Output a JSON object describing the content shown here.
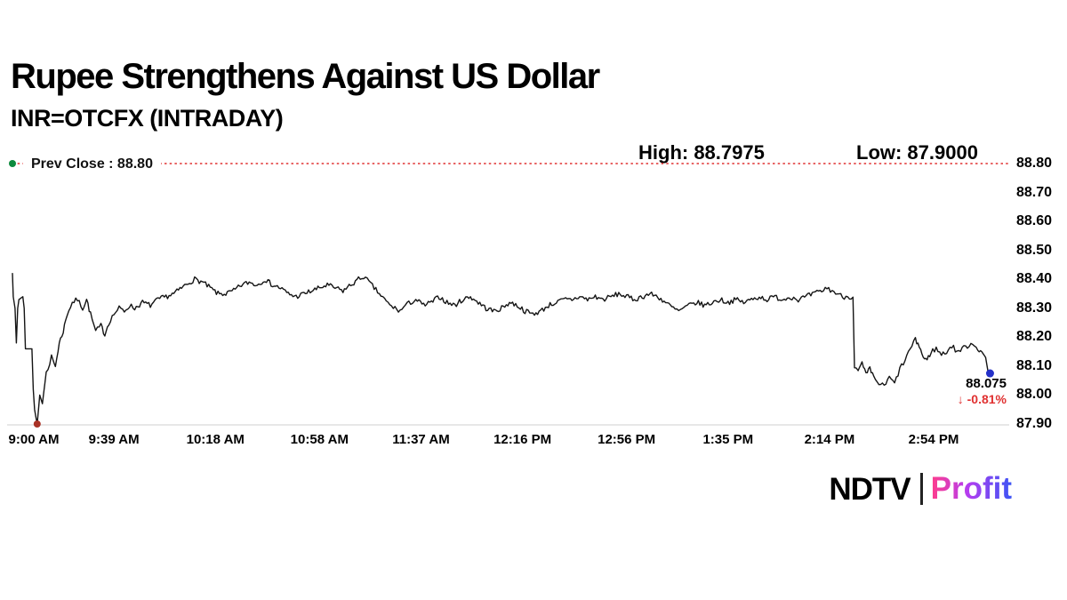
{
  "header": {
    "title": "Rupee Strengthens Against US Dollar",
    "subtitle": "INR=OTCFX (INTRADAY)"
  },
  "chart": {
    "prev_close_label": "Prev Close : 88.80",
    "high_label": "High: 88.7975",
    "low_label": "Low: 87.9000",
    "last_price": "88.075",
    "change_label": "↓ -0.81%"
  },
  "colors": {
    "line": "#141414",
    "prev_close_red": "#e03131",
    "change_red": "#e03131",
    "start_dot_green": "#0e8a3e",
    "low_dot_red": "#a93226",
    "end_dot_blue": "#2430c8",
    "axis_gray": "#cfcfcf"
  },
  "chart_data": {
    "type": "line",
    "title": "Rupee Strengthens Against US Dollar",
    "instrument": "INR=OTCFX (INTRADAY)",
    "prev_close": 88.8,
    "high": 88.7975,
    "low": 87.9,
    "last": 88.075,
    "change_pct": -0.81,
    "ylim": [
      87.9,
      88.8
    ],
    "y_ticks": [
      88.8,
      88.7,
      88.6,
      88.5,
      88.4,
      88.3,
      88.2,
      88.1,
      88.0,
      87.9
    ],
    "x_ticks": [
      "9:00 AM",
      "9:39 AM",
      "10:18 AM",
      "10:58 AM",
      "11:37 AM",
      "12:16 PM",
      "12:56 PM",
      "1:35 PM",
      "2:14 PM",
      "2:54 PM"
    ],
    "x_tick_minutes": [
      0,
      39,
      78,
      118,
      157,
      196,
      236,
      275,
      314,
      354
    ],
    "low_point_minute": 9.5,
    "anchors": [
      [
        0,
        88.8
      ],
      [
        0.3,
        88.34
      ],
      [
        1,
        88.3
      ],
      [
        1.5,
        88.18
      ],
      [
        2,
        88.3
      ],
      [
        2.5,
        88.33
      ],
      [
        4,
        88.34
      ],
      [
        4.5,
        88.3
      ],
      [
        5,
        88.16
      ],
      [
        7.5,
        88.16
      ],
      [
        8,
        88.02
      ],
      [
        8.5,
        87.95
      ],
      [
        9.5,
        87.9
      ],
      [
        10.5,
        88.0
      ],
      [
        11.5,
        87.97
      ],
      [
        13,
        88.08
      ],
      [
        15,
        88.13
      ],
      [
        16.5,
        88.1
      ],
      [
        18,
        88.18
      ],
      [
        19.5,
        88.22
      ],
      [
        21,
        88.28
      ],
      [
        23,
        88.32
      ],
      [
        25,
        88.33
      ],
      [
        27,
        88.3
      ],
      [
        28.5,
        88.33
      ],
      [
        30,
        88.28
      ],
      [
        32,
        88.22
      ],
      [
        34,
        88.24
      ],
      [
        35.5,
        88.21
      ],
      [
        37,
        88.25
      ],
      [
        39,
        88.28
      ],
      [
        41,
        88.3
      ],
      [
        43,
        88.29
      ],
      [
        45,
        88.31
      ],
      [
        47,
        88.3
      ],
      [
        50,
        88.32
      ],
      [
        53,
        88.31
      ],
      [
        56,
        88.33
      ],
      [
        59,
        88.34
      ],
      [
        62,
        88.35
      ],
      [
        65,
        88.37
      ],
      [
        68,
        88.39
      ],
      [
        70,
        88.4
      ],
      [
        73,
        88.39
      ],
      [
        76,
        88.37
      ],
      [
        79,
        88.35
      ],
      [
        82,
        88.35
      ],
      [
        85,
        88.36
      ],
      [
        88,
        88.38
      ],
      [
        91,
        88.39
      ],
      [
        94,
        88.38
      ],
      [
        97,
        88.4
      ],
      [
        100,
        88.38
      ],
      [
        103,
        88.37
      ],
      [
        106,
        88.35
      ],
      [
        109,
        88.34
      ],
      [
        112,
        88.35
      ],
      [
        115,
        88.36
      ],
      [
        118,
        88.37
      ],
      [
        121,
        88.38
      ],
      [
        124,
        88.37
      ],
      [
        127,
        88.36
      ],
      [
        130,
        88.38
      ],
      [
        133,
        88.4
      ],
      [
        135,
        88.41
      ],
      [
        137,
        88.39
      ],
      [
        139,
        88.37
      ],
      [
        141,
        88.35
      ],
      [
        143,
        88.33
      ],
      [
        145,
        88.31
      ],
      [
        147,
        88.3
      ],
      [
        149,
        88.29
      ],
      [
        151,
        88.31
      ],
      [
        153,
        88.32
      ],
      [
        155,
        88.33
      ],
      [
        158,
        88.31
      ],
      [
        161,
        88.32
      ],
      [
        164,
        88.34
      ],
      [
        167,
        88.32
      ],
      [
        170,
        88.31
      ],
      [
        173,
        88.33
      ],
      [
        176,
        88.34
      ],
      [
        179,
        88.32
      ],
      [
        182,
        88.3
      ],
      [
        185,
        88.29
      ],
      [
        188,
        88.3
      ],
      [
        191,
        88.32
      ],
      [
        194,
        88.31
      ],
      [
        197,
        88.29
      ],
      [
        200,
        88.28
      ],
      [
        203,
        88.29
      ],
      [
        206,
        88.31
      ],
      [
        209,
        88.32
      ],
      [
        212,
        88.33
      ],
      [
        215,
        88.33
      ],
      [
        218,
        88.34
      ],
      [
        221,
        88.33
      ],
      [
        224,
        88.34
      ],
      [
        227,
        88.33
      ],
      [
        230,
        88.34
      ],
      [
        233,
        88.35
      ],
      [
        236,
        88.34
      ],
      [
        239,
        88.33
      ],
      [
        242,
        88.34
      ],
      [
        245,
        88.35
      ],
      [
        248,
        88.34
      ],
      [
        251,
        88.32
      ],
      [
        254,
        88.3
      ],
      [
        256,
        88.29
      ],
      [
        258,
        88.3
      ],
      [
        260,
        88.31
      ],
      [
        263,
        88.32
      ],
      [
        266,
        88.31
      ],
      [
        269,
        88.32
      ],
      [
        272,
        88.33
      ],
      [
        275,
        88.32
      ],
      [
        278,
        88.33
      ],
      [
        281,
        88.32
      ],
      [
        284,
        88.33
      ],
      [
        287,
        88.34
      ],
      [
        290,
        88.33
      ],
      [
        293,
        88.34
      ],
      [
        296,
        88.33
      ],
      [
        299,
        88.34
      ],
      [
        302,
        88.33
      ],
      [
        305,
        88.34
      ],
      [
        308,
        88.35
      ],
      [
        311,
        88.36
      ],
      [
        313,
        88.37
      ],
      [
        315,
        88.36
      ],
      [
        317,
        88.35
      ],
      [
        319,
        88.34
      ],
      [
        321,
        88.34
      ],
      [
        323,
        88.34
      ],
      [
        323.6,
        88.1
      ],
      [
        325,
        88.08
      ],
      [
        326.5,
        88.11
      ],
      [
        328,
        88.07
      ],
      [
        329.5,
        88.09
      ],
      [
        331,
        88.06
      ],
      [
        333,
        88.04
      ],
      [
        335,
        88.03
      ],
      [
        337,
        88.06
      ],
      [
        339,
        88.04
      ],
      [
        341,
        88.09
      ],
      [
        343,
        88.12
      ],
      [
        345,
        88.16
      ],
      [
        347,
        88.19
      ],
      [
        348.5,
        88.17
      ],
      [
        350,
        88.13
      ],
      [
        351.5,
        88.12
      ],
      [
        353,
        88.15
      ],
      [
        355,
        88.16
      ],
      [
        357,
        88.14
      ],
      [
        359,
        88.15
      ],
      [
        361,
        88.17
      ],
      [
        363,
        88.15
      ],
      [
        365,
        88.16
      ],
      [
        367,
        88.17
      ],
      [
        369,
        88.18
      ],
      [
        371,
        88.16
      ],
      [
        372.5,
        88.15
      ],
      [
        374,
        88.13
      ],
      [
        375,
        88.075
      ]
    ]
  },
  "footer": {
    "logo_ndtv": "NDTV",
    "logo_profit": "Profit"
  }
}
